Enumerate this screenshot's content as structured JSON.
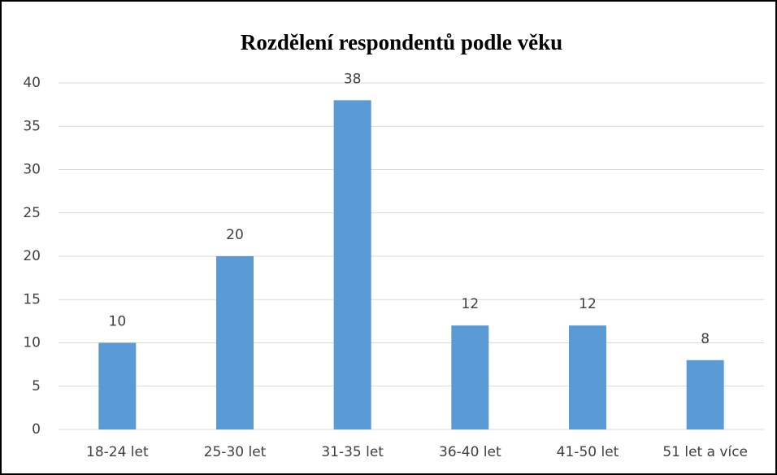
{
  "chart_data": {
    "type": "bar",
    "title": "Rozdělení respondentů podle věku",
    "categories": [
      "18-24 let",
      "25-30 let",
      "31-35 let",
      "36-40 let",
      "41-50 let",
      "51 let a více"
    ],
    "values": [
      10,
      20,
      38,
      12,
      12,
      8
    ],
    "color": "#5b9bd5",
    "ylim": [
      0,
      40
    ],
    "yticks": [
      0,
      5,
      10,
      15,
      20,
      25,
      30,
      35,
      40
    ],
    "grid": true
  }
}
